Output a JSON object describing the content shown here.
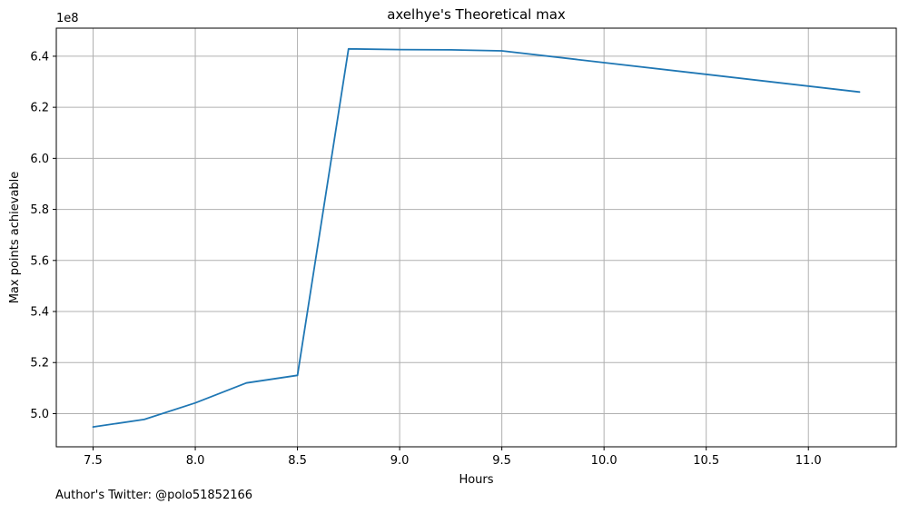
{
  "chart_data": {
    "type": "line",
    "title": "axelhye's Theoretical max",
    "xlabel": "Hours",
    "ylabel": "Max points achievable",
    "y_offset_label": "1e8",
    "grid": true,
    "xlim": [
      7.32,
      11.43
    ],
    "ylim": [
      487000000,
      651000000
    ],
    "x_ticks": [
      7.5,
      8.0,
      8.5,
      9.0,
      9.5,
      10.0,
      10.5,
      11.0
    ],
    "x_tick_labels": [
      "7.5",
      "8.0",
      "8.5",
      "9.0",
      "9.5",
      "10.0",
      "10.5",
      "11.0"
    ],
    "y_ticks": [
      500000000,
      520000000,
      540000000,
      560000000,
      580000000,
      600000000,
      620000000,
      640000000
    ],
    "y_tick_labels": [
      "5.0",
      "5.2",
      "5.4",
      "5.6",
      "5.8",
      "6.0",
      "6.2",
      "6.4"
    ],
    "series": [
      {
        "color": "#1f77b4",
        "x": [
          7.5,
          7.75,
          8.0,
          8.25,
          8.5,
          8.75,
          9.0,
          9.25,
          9.5,
          11.25
        ],
        "y": [
          494800000,
          497700000,
          504200000,
          512000000,
          515000000,
          642900000,
          642600000,
          642500000,
          642100000,
          626000000
        ]
      }
    ]
  },
  "footer": {
    "text": "Author's Twitter: @polo51852166"
  }
}
